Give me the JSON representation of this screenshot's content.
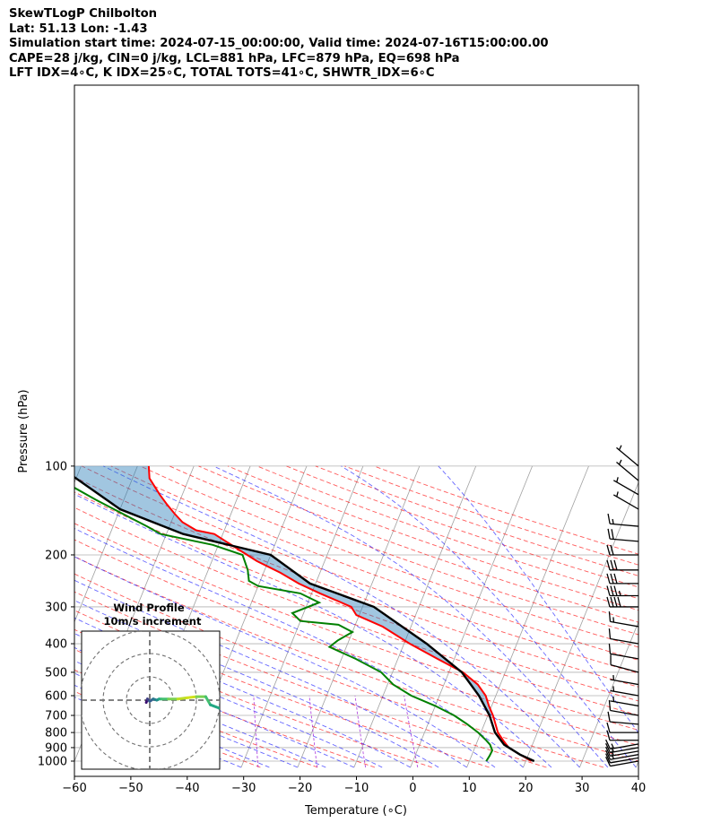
{
  "header": {
    "title": "SkewTLogP Chilbolton",
    "location": "Lat: 51.13   Lon: -1.43",
    "times": "Simulation start time: 2024-07-15_00:00:00, Valid time: 2024-07-16T15:00:00.00",
    "params": "CAPE=28 j/kg, CIN=0 j/kg, LCL=881 hPa, LFC=879 hPa, EQ=698 hPa",
    "indices": "LFT IDX=4∘C, K IDX=25∘C, TOTAL TOTS=41∘C, SHWTR_IDX=6∘C"
  },
  "chart_data": {
    "type": "line",
    "subtype": "skew-t log-p",
    "xlabel": "Temperature (∘C)",
    "ylabel": "Pressure (hPa)",
    "xlim": [
      -60,
      40
    ],
    "ylim": [
      1050,
      100
    ],
    "y_scale": "log",
    "x_ticks": [
      -60,
      -50,
      -40,
      -30,
      -20,
      -10,
      0,
      10,
      20,
      30,
      40
    ],
    "x_tick_labels": [
      "−60",
      "−50",
      "−40",
      "−30",
      "−20",
      "−10",
      "0",
      "10",
      "20",
      "30",
      "40"
    ],
    "y_ticks": [
      1000,
      900,
      800,
      700,
      600,
      500,
      400,
      300,
      200,
      100
    ],
    "y_tick_labels": [
      "1000",
      "900",
      "800",
      "700",
      "600",
      "500",
      "400",
      "300",
      "200",
      "100"
    ],
    "colors": {
      "temperature": "#ff0000",
      "dewpoint": "#008000",
      "parcel": "#000000",
      "cape_fill": "#1f77b4",
      "dry_adiabat": "#ff0000",
      "moist_adiabat": "#0000ff",
      "mixing_ratio": "#9400d3",
      "isotherm": "#a0a0a0"
    },
    "series": [
      {
        "name": "temperature",
        "points": [
          [
            21,
            1000
          ],
          [
            18.5,
            950
          ],
          [
            16,
            900
          ],
          [
            14.5,
            850
          ],
          [
            13,
            800
          ],
          [
            12,
            750
          ],
          [
            10.9,
            700
          ],
          [
            9.5,
            650
          ],
          [
            8.2,
            600
          ],
          [
            6,
            550
          ],
          [
            2.5,
            500
          ],
          [
            -3,
            450
          ],
          [
            -9,
            400
          ],
          [
            -15,
            350
          ],
          [
            -20.5,
            320
          ],
          [
            -22,
            300
          ],
          [
            -28.5,
            270
          ],
          [
            -33,
            250
          ],
          [
            -37,
            230
          ],
          [
            -42,
            210
          ],
          [
            -46.5,
            190
          ],
          [
            -51.5,
            170
          ],
          [
            -55,
            165
          ],
          [
            -58,
            155
          ],
          [
            -60,
            145
          ],
          [
            -62,
            135
          ],
          [
            -64,
            125
          ],
          [
            -67,
            110
          ],
          [
            -68,
            100
          ]
        ]
      },
      {
        "name": "dewpoint",
        "points": [
          [
            13,
            1000
          ],
          [
            13.2,
            960
          ],
          [
            13.3,
            920
          ],
          [
            12.5,
            880
          ],
          [
            11.5,
            850
          ],
          [
            9.5,
            800
          ],
          [
            7,
            750
          ],
          [
            4,
            700
          ],
          [
            0,
            650
          ],
          [
            -5,
            600
          ],
          [
            -9,
            550
          ],
          [
            -12,
            500
          ],
          [
            -17.5,
            450
          ],
          [
            -23,
            410
          ],
          [
            -22,
            390
          ],
          [
            -20,
            365
          ],
          [
            -23,
            345
          ],
          [
            -30,
            335
          ],
          [
            -32,
            315
          ],
          [
            -28,
            290
          ],
          [
            -32,
            270
          ],
          [
            -40,
            255
          ],
          [
            -42,
            245
          ],
          [
            -43,
            225
          ],
          [
            -45,
            200
          ],
          [
            -51,
            185
          ],
          [
            -61,
            170
          ],
          [
            -64,
            160
          ],
          [
            -75,
            130
          ],
          [
            -88,
            100
          ]
        ]
      },
      {
        "name": "parcel",
        "points": [
          [
            21.5,
            1000
          ],
          [
            18.5,
            950
          ],
          [
            15,
            880
          ],
          [
            12.5,
            800
          ],
          [
            10.3,
            700
          ],
          [
            7,
            600
          ],
          [
            2.3,
            500
          ],
          [
            -6,
            400
          ],
          [
            -18,
            300
          ],
          [
            -31,
            250
          ],
          [
            -40,
            200
          ],
          [
            -57,
            170
          ],
          [
            -70,
            140
          ],
          [
            -84,
            100
          ]
        ]
      }
    ],
    "cape_region": "shaded between parcel and temperature curves above the LFC",
    "wind_barbs": {
      "levels_hPa": [
        1000,
        975,
        950,
        925,
        900,
        875,
        850,
        800,
        750,
        700,
        650,
        600,
        550,
        500,
        450,
        400,
        350,
        300,
        275,
        250,
        225,
        200,
        180,
        160,
        140,
        125,
        112,
        100
      ],
      "speed_kt": [
        10,
        10,
        15,
        15,
        15,
        15,
        10,
        10,
        10,
        10,
        5,
        5,
        5,
        10,
        10,
        10,
        15,
        40,
        35,
        30,
        30,
        20,
        20,
        15,
        5,
        5,
        5,
        5
      ],
      "direction_deg": [
        260,
        260,
        260,
        260,
        260,
        260,
        270,
        270,
        275,
        280,
        280,
        280,
        280,
        285,
        280,
        280,
        280,
        270,
        270,
        270,
        270,
        270,
        275,
        275,
        300,
        300,
        310,
        310
      ]
    },
    "hodograph": {
      "title": "Wind Profile",
      "subtitle": "10m/s increment",
      "rings_ms": [
        10,
        20,
        30
      ],
      "u_ms": [
        -1.5,
        -1,
        0,
        1.5,
        3,
        4,
        5,
        8,
        12,
        16,
        20,
        24,
        26,
        30
      ],
      "v_ms": [
        -1,
        0.5,
        -0.5,
        0.5,
        0,
        0.5,
        0.5,
        0.5,
        0.5,
        1.0,
        1.5,
        1.5,
        -2,
        -3.5
      ]
    },
    "grid": true
  }
}
